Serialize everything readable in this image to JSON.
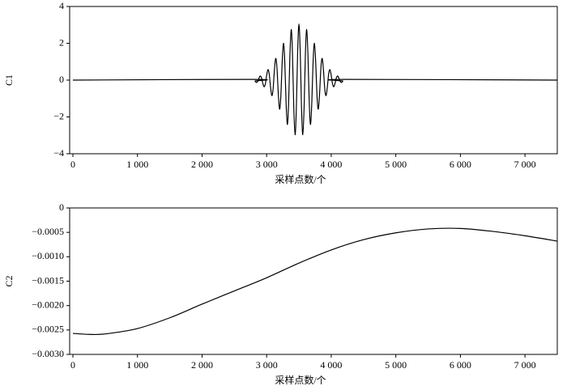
{
  "chart_data": [
    {
      "type": "line",
      "ylabel": "C1",
      "xlabel": "采样点数/个",
      "color": "#000000",
      "x": [
        0,
        2800,
        2820,
        2840,
        2860,
        2880,
        2900,
        2920,
        2940,
        2960,
        2980,
        3000,
        3020,
        3040,
        3060,
        3080,
        3100,
        3120,
        3140,
        3160,
        3180,
        3200,
        3220,
        3240,
        3260,
        3280,
        3300,
        3320,
        3340,
        3360,
        3380,
        3400,
        3420,
        3440,
        3460,
        3480,
        3500,
        3520,
        3540,
        3560,
        3580,
        3600,
        3620,
        3640,
        3660,
        3680,
        3700,
        3720,
        3740,
        3760,
        3780,
        3800,
        3820,
        3840,
        3860,
        3880,
        3900,
        3920,
        3940,
        3960,
        3980,
        4000,
        4020,
        4040,
        4060,
        4080,
        4100,
        4120,
        4140,
        4160,
        4180,
        4200,
        7500
      ],
      "values": [
        0,
        0.04,
        -0.05,
        -0.13,
        -0.08,
        0.09,
        0.22,
        0.13,
        -0.16,
        -0.36,
        -0.21,
        0.25,
        0.57,
        0.33,
        -0.37,
        -0.84,
        -0.48,
        0.53,
        1.18,
        0.66,
        -0.72,
        -1.58,
        -0.86,
        0.93,
        2.0,
        1.07,
        -1.14,
        -2.41,
        -1.27,
        1.32,
        2.75,
        1.42,
        -1.46,
        -2.97,
        -1.51,
        1.52,
        3.05,
        1.52,
        -1.51,
        -2.97,
        -1.46,
        1.42,
        2.75,
        1.32,
        -1.27,
        -2.41,
        -1.14,
        1.07,
        2.0,
        0.93,
        -0.86,
        -1.58,
        -0.72,
        0.66,
        1.18,
        0.53,
        -0.48,
        -0.84,
        -0.37,
        0.33,
        0.57,
        0.25,
        -0.21,
        -0.36,
        -0.16,
        0.13,
        0.22,
        0.09,
        -0.08,
        -0.13,
        -0.05,
        0.04,
        0
      ],
      "xlim": [
        -50,
        7500
      ],
      "ylim": [
        -4,
        4
      ],
      "xticks": [
        0,
        {
          "value": 1000,
          "label": "1 000"
        },
        {
          "value": 2000,
          "label": "2 000"
        },
        {
          "value": 3000,
          "label": "3 000"
        },
        {
          "value": 4000,
          "label": "4 000"
        },
        {
          "value": 5000,
          "label": "5 000"
        },
        {
          "value": 6000,
          "label": "6 000"
        },
        {
          "value": 7000,
          "label": "7 000"
        }
      ],
      "yticks": [
        {
          "value": -4,
          "label": "−4"
        },
        {
          "value": -2,
          "label": "−2"
        },
        0,
        2,
        4
      ]
    },
    {
      "type": "line",
      "ylabel": "C2",
      "xlabel": "采样点数/个",
      "color": "#000000",
      "x": [
        0,
        250,
        500,
        1000,
        1500,
        2000,
        2500,
        3000,
        3500,
        4000,
        4500,
        5000,
        5500,
        6000,
        6500,
        7000,
        7500
      ],
      "values": [
        -0.00257,
        -0.00259,
        -0.00258,
        -0.00247,
        -0.00225,
        -0.00197,
        -0.0017,
        -0.00143,
        -0.00113,
        -0.00086,
        -0.00065,
        -0.00051,
        -0.00043,
        -0.00042,
        -0.00048,
        -0.00057,
        -0.00068
      ],
      "xlim": [
        -50,
        7500
      ],
      "ylim": [
        -0.003,
        0
      ],
      "xticks": [
        0,
        {
          "value": 1000,
          "label": "1 000"
        },
        {
          "value": 2000,
          "label": "2 000"
        },
        {
          "value": 3000,
          "label": "3 000"
        },
        {
          "value": 4000,
          "label": "4 000"
        },
        {
          "value": 5000,
          "label": "5 000"
        },
        {
          "value": 6000,
          "label": "6 000"
        },
        {
          "value": 7000,
          "label": "7 000"
        }
      ],
      "yticks": [
        {
          "value": -0.003,
          "label": "−0.0030"
        },
        {
          "value": -0.0025,
          "label": "−0.0025"
        },
        {
          "value": -0.002,
          "label": "−0.0020"
        },
        {
          "value": -0.0015,
          "label": "−0.0015"
        },
        {
          "value": -0.001,
          "label": "−0.0010"
        },
        {
          "value": -0.0005,
          "label": "−0.0005"
        },
        0
      ]
    }
  ]
}
